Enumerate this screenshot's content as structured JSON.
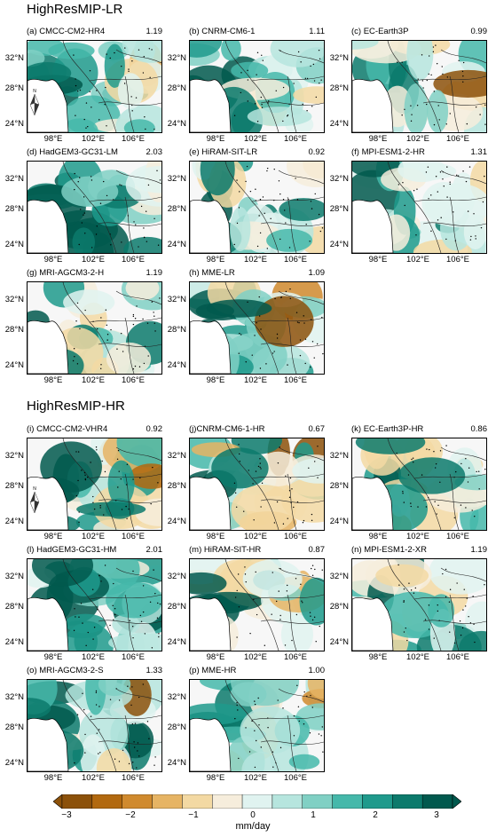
{
  "sections": [
    {
      "title": "HighResMIP-LR"
    },
    {
      "title": "HighResMIP-HR"
    }
  ],
  "lat_labels": [
    "32°N",
    "28°N",
    "24°N"
  ],
  "lon_labels": [
    "98°E",
    "102°E",
    "106°E"
  ],
  "compass_label": "N",
  "panels": [
    {
      "title": "(a) CMCC-CM2-HR4",
      "value": "1.19",
      "compass": true
    },
    {
      "title": "(b) CNRM-CM6-1",
      "value": "1.11"
    },
    {
      "title": "(c) EC-Earth3P",
      "value": "0.99"
    },
    {
      "title": "(d) HadGEM3-GC31-LM",
      "value": "2.03"
    },
    {
      "title": "(e) HiRAM-SIT-LR",
      "value": "0.92"
    },
    {
      "title": "(f) MPI-ESM1-2-HR",
      "value": "1.31"
    },
    {
      "title": "(g) MRI-AGCM3-2-H",
      "value": "1.19"
    },
    {
      "title": "(h) MME-LR",
      "value": "1.09"
    },
    {
      "title": "(i) CMCC-CM2-VHR4",
      "value": "0.92",
      "compass": true
    },
    {
      "title": "(j)CNRM-CM6-1-HR",
      "value": "0.67"
    },
    {
      "title": "(k) EC-Earth3P-HR",
      "value": "0.86"
    },
    {
      "title": "(l) HadGEM3-GC31-HM",
      "value": "2.01"
    },
    {
      "title": "(m) HiRAM-SIT-HR",
      "value": "0.87"
    },
    {
      "title": "(n) MPI-ESM1-2-XR",
      "value": "1.19"
    },
    {
      "title": "(o) MRI-AGCM3-2-S",
      "value": "1.33"
    },
    {
      "title": "(p) MME-HR",
      "value": "1.00"
    }
  ],
  "colorbar": {
    "ticks": [
      "−3",
      "−2",
      "−1",
      "0",
      "1",
      "2",
      "3"
    ],
    "unit": "mm/day",
    "colors": [
      "#8c510a",
      "#b2690f",
      "#d08a2e",
      "#e6b464",
      "#f3d9a3",
      "#f6eddc",
      "#e0f3f0",
      "#b6e5de",
      "#80d0c4",
      "#45b8aa",
      "#1f9a8c",
      "#0c7a6c",
      "#01594e"
    ]
  },
  "chart_data": {
    "type": "heatmap",
    "xlabel": "",
    "ylabel": "",
    "x_ticks": [
      "98°E",
      "102°E",
      "106°E"
    ],
    "y_ticks": [
      "32°N",
      "28°N",
      "24°N"
    ],
    "color_range": [
      -3,
      3
    ],
    "unit": "mm/day",
    "panel_values": [
      1.19,
      1.11,
      0.99,
      2.03,
      0.92,
      1.31,
      1.19,
      1.09,
      0.92,
      0.67,
      0.86,
      2.01,
      0.87,
      1.19,
      1.33,
      1.0
    ]
  }
}
